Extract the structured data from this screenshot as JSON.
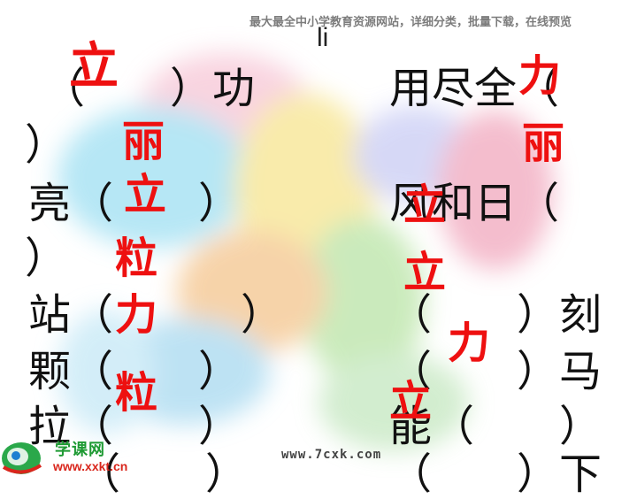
{
  "header": {
    "site_text": "最大最全中小学教育资源网站，详细分类，批量下载，在线预览"
  },
  "pinyin": "li",
  "exercise": {
    "left": [
      "（　　）功",
      "）",
      "亮（　　）",
      "）",
      "站（　　　）",
      "颗（　　）",
      "拉（　　）",
      "（　　）"
    ],
    "right": [
      "用尽全（",
      "风和日（",
      "（　　）刻",
      "（　　）马",
      "能（　　）",
      "（　　）下"
    ]
  },
  "answers": [
    "立",
    "丽",
    "立",
    "粒",
    "力",
    "粒",
    "力",
    "丽",
    "立",
    "立",
    "力",
    "立"
  ],
  "footer": {
    "url_text": "www.7cxk.com",
    "logo_cn": "学课网",
    "logo_url": "www.xxkt.cn"
  },
  "colors": {
    "answer": "#ee1010",
    "text": "#111111",
    "logo_green": "#1e9a33",
    "logo_red": "#d9261c"
  }
}
